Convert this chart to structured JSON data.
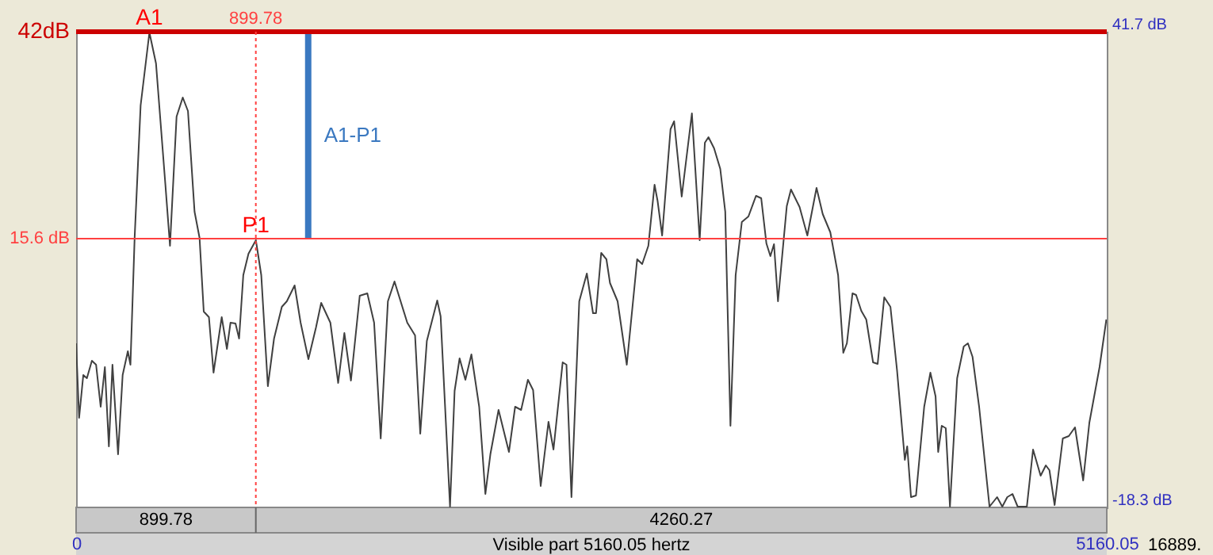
{
  "chart_data": {
    "type": "line",
    "xlabel": "Visible part 5160.05 hertz",
    "series": [
      {
        "name": "A1-P1",
        "color": "#3a78c0",
        "x": [
          1162,
          1162
        ],
        "values": [
          15.6,
          41.7
        ]
      },
      {
        "color": "#404040",
        "x": [
          0,
          15,
          36,
          54,
          79,
          100,
          123,
          144,
          164,
          182,
          210,
          233,
          259,
          272,
          293,
          323,
          367,
          400,
          447,
          470,
          503,
          534,
          560,
          593,
          618,
          639,
          665,
          688,
          729,
          755,
          773,
          798,
          816,
          837,
          863,
          900,
          927,
          960,
          991,
          1030,
          1055,
          1094,
          1124,
          1163,
          1201,
          1227,
          1273,
          1312,
          1343,
          1376,
          1420,
          1458,
          1492,
          1525,
          1561,
          1594,
          1658,
          1697,
          1723,
          1756,
          1808,
          1825,
          1872,
          1895,
          1920,
          1949,
          1979,
          2018,
          2049,
          2074,
          2115,
          2167,
          2198,
          2228,
          2262,
          2288,
          2326,
          2365,
          2390,
          2436,
          2455,
          2480,
          2519,
          2557,
          2588,
          2603,
          2629,
          2655,
          2673,
          2711,
          2757,
          2809,
          2834,
          2865,
          2896,
          2911,
          2934,
          2976,
          2994,
          3032,
          3083,
          3122,
          3148,
          3166,
          3194,
          3225,
          3250,
          3276,
          3302,
          3333,
          3366,
          3404,
          3430,
          3456,
          3476,
          3494,
          3514,
          3558,
          3579,
          3622,
          3661,
          3707,
          3738,
          3776,
          3815,
          3841,
          3859,
          3887,
          3905,
          3931,
          3956,
          3990,
          4013,
          4046,
          4077,
          4110,
          4149,
          4161,
          4180,
          4205,
          4246,
          4277,
          4303,
          4316,
          4334,
          4354,
          4375,
          4411,
          4444,
          4465,
          4488,
          4521,
          4573,
          4611,
          4637,
          4662,
          4688,
          4714,
          4760,
          4791,
          4829,
          4855,
          4873,
          4899,
          4940,
          4970,
          5001,
          5042,
          5073,
          5124,
          5158
        ],
        "values": [
          2.4,
          -7.0,
          -1.6,
          -2.0,
          0.2,
          -0.3,
          -5.6,
          -0.6,
          -10.6,
          -0.3,
          -11.6,
          -1.6,
          1.4,
          -0.3,
          15.7,
          32.4,
          41.6,
          37.7,
          22.4,
          14.7,
          31.0,
          33.4,
          31.7,
          19.0,
          15.7,
          6.4,
          5.7,
          -1.3,
          5.7,
          1.7,
          5.0,
          4.9,
          3.0,
          11.0,
          13.7,
          15.4,
          11.0,
          -3.0,
          3.0,
          7.0,
          7.7,
          9.7,
          5.0,
          0.4,
          4.4,
          7.5,
          5.0,
          -2.6,
          3.7,
          -2.3,
          8.4,
          8.7,
          5.0,
          -9.6,
          7.7,
          10.2,
          5.0,
          3.4,
          -9.0,
          2.7,
          7.8,
          5.8,
          -18.2,
          -3.6,
          0.5,
          -2.2,
          1.0,
          -5.6,
          -16.6,
          -11.6,
          -6.0,
          -11.3,
          -5.6,
          -6.0,
          -2.2,
          -3.5,
          -15.6,
          -7.5,
          -11.0,
          0.0,
          -0.3,
          -17.0,
          7.7,
          11.2,
          6.2,
          6.2,
          13.8,
          13.0,
          10.0,
          7.7,
          -0.3,
          13.0,
          12.4,
          14.7,
          22.4,
          20.4,
          16.0,
          29.4,
          30.4,
          20.9,
          31.4,
          15.4,
          27.7,
          28.4,
          27.0,
          24.4,
          19.0,
          -8.0,
          11.0,
          17.7,
          18.4,
          21.0,
          20.7,
          15.0,
          13.4,
          14.9,
          7.7,
          19.7,
          21.8,
          19.6,
          16.0,
          22.0,
          18.7,
          16.4,
          11.0,
          1.2,
          2.4,
          8.7,
          8.5,
          6.5,
          5.4,
          0.0,
          -0.2,
          8.2,
          7.0,
          -1.0,
          -12.3,
          -10.6,
          -17.0,
          -16.8,
          -5.6,
          -1.3,
          -4.3,
          -11.3,
          -8.0,
          -8.3,
          -18.2,
          -2.0,
          2.0,
          2.4,
          0.7,
          -5.6,
          -18.2,
          -17.0,
          -18.2,
          -17.0,
          -16.6,
          -18.2,
          -18.2,
          -11.0,
          -14.3,
          -13.0,
          -13.6,
          -18.0,
          -9.6,
          -9.3,
          -8.2,
          -14.9,
          -7.6,
          -0.6,
          5.4
        ]
      }
    ],
    "xlim": [
      0,
      5160.05
    ],
    "xticks": [
      0,
      5160.05
    ],
    "ylim": [
      -18.3,
      41.7
    ],
    "yticks": [
      {
        "value": -18.3,
        "label": "-18.3 dB"
      },
      {
        "value": 41.7,
        "label": "41.7 dB"
      }
    ],
    "ref_lines": [
      {
        "axis": "y",
        "value": 41.7,
        "label": "42dB",
        "color": "#cc0000",
        "line_style": "solid"
      },
      {
        "axis": "y",
        "value": 15.6,
        "label": "15.6 dB",
        "color": "#ff4040",
        "line_style": "solid"
      },
      {
        "axis": "x",
        "value": 899.78,
        "label": "899.78",
        "color": "#ff4040",
        "line_style": "dotted"
      }
    ],
    "annotations": [
      {
        "text": "A1",
        "x": 367,
        "y": 41.6
      },
      {
        "text": "P1",
        "x": 900,
        "y": 15.4
      },
      "899.78",
      "4260.27",
      "16889."
    ],
    "grid": false,
    "marker": "none",
    "line_style": "solid"
  }
}
